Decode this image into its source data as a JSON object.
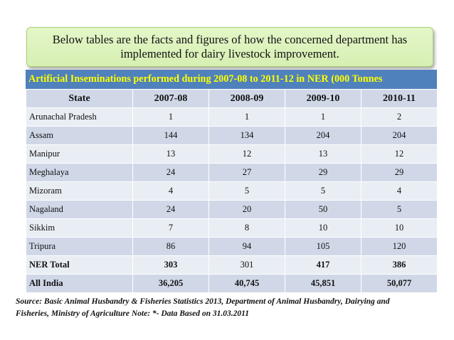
{
  "callout": {
    "line1": "Below tables are the facts and figures of how the concerned department has",
    "line2": "implemented for dairy livestock improvement."
  },
  "table": {
    "title": "Artificial Inseminations performed during 2007-08 to 2011-12 in NER  (000 Tonnes",
    "headers": [
      "State",
      "2007-08",
      "2008-09",
      "2009-10",
      "2010-11"
    ],
    "rows": [
      [
        "Arunachal Pradesh",
        "1",
        "1",
        "1",
        "2"
      ],
      [
        "Assam",
        "144",
        "134",
        "204",
        "204"
      ],
      [
        "Manipur",
        "13",
        "12",
        "13",
        "12"
      ],
      [
        "Meghalaya",
        "24",
        "27",
        "29",
        "29"
      ],
      [
        "Mizoram",
        "4",
        "5",
        "5",
        "4"
      ],
      [
        "Nagaland",
        "24",
        "20",
        "50",
        "5"
      ],
      [
        "Sikkim",
        "7",
        "8",
        "10",
        "10"
      ],
      [
        "Tripura",
        "86",
        "94",
        "105",
        "120"
      ],
      [
        "NER Total",
        "303",
        "301",
        "417",
        "386"
      ],
      [
        "All India",
        "36,205",
        "40,745",
        "45,851",
        "50,077"
      ]
    ]
  },
  "source": {
    "line1": "Source: Basic Animal Husbandry & Fisheries Statistics 2013, Department of Animal Husbandry, Dairying and",
    "line2": "Fisheries,  Ministry of Agriculture Note: *- Data Based on 31.03.2011"
  }
}
